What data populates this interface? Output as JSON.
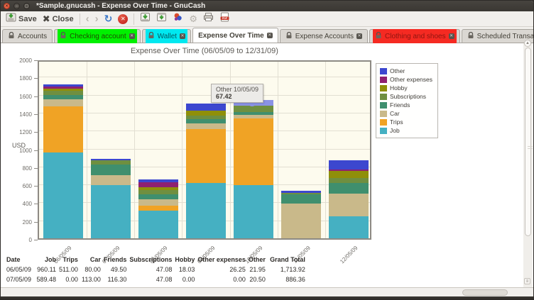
{
  "window": {
    "title": "*Sample.gnucash - Expense Over Time - GnuCash"
  },
  "toolbar": {
    "save_label": "Save",
    "close_label": "Close",
    "icons": [
      "save-icon",
      "close-icon",
      "back-icon",
      "forward-icon",
      "reload-icon",
      "stop-icon",
      "export-icon",
      "export-alt-icon",
      "report-options-icon",
      "gear-icon",
      "print-icon",
      "export-pdf-icon"
    ]
  },
  "tabs": [
    {
      "label": "Accounts",
      "closable": false,
      "active": false,
      "highlight": null
    },
    {
      "label": "Checking account",
      "closable": true,
      "active": false,
      "highlight": "#00f000",
      "text_color": "#1d4d00"
    },
    {
      "label": "Wallet",
      "closable": true,
      "active": false,
      "highlight": "#00e8f0",
      "text_color": "#005a62"
    },
    {
      "label": "Expense Over Time",
      "closable": true,
      "active": true,
      "highlight": null
    },
    {
      "label": "Expense Accounts",
      "closable": true,
      "active": false,
      "highlight": null
    },
    {
      "label": "Clothing and shoes",
      "closable": true,
      "active": false,
      "highlight": "#f52a22",
      "text_color": "#8e1510"
    },
    {
      "label": "Scheduled Transactions",
      "closable": true,
      "active": false,
      "highlight": null
    }
  ],
  "chart_data": {
    "type": "bar",
    "stacked": true,
    "title": "Expense Over Time (06/05/09 to 12/31/09)",
    "ylabel": "USD",
    "xlabel": "",
    "ylim": [
      0,
      2000
    ],
    "ytick_step": 200,
    "grid": true,
    "legend_position": "right",
    "categories": [
      "06/05/09",
      "07/05/09",
      "08/05/09",
      "09/05/09",
      "10/05/09",
      "11/05/09",
      "12/05/09"
    ],
    "series": [
      {
        "name": "Job",
        "color": "#45b0c2",
        "values": [
          960.11,
          589.48,
          310,
          620,
          590,
          0,
          245
        ]
      },
      {
        "name": "Trips",
        "color": "#f0a325",
        "values": [
          511.0,
          0.0,
          50,
          600,
          745,
          0,
          0
        ]
      },
      {
        "name": "Car",
        "color": "#c9b98a",
        "values": [
          80.0,
          113.0,
          75,
          60,
          40,
          390,
          250
        ]
      },
      {
        "name": "Friends",
        "color": "#3f8f6e",
        "values": [
          49.5,
          116.3,
          55,
          45,
          30,
          100,
          120
        ]
      },
      {
        "name": "Subscriptions",
        "color": "#6f8f40",
        "values": [
          47.08,
          47.08,
          47,
          45,
          70,
          15,
          60
        ]
      },
      {
        "name": "Hobby",
        "color": "#8f8f0a",
        "values": [
          18.03,
          0.0,
          35,
          55,
          0,
          0,
          80
        ]
      },
      {
        "name": "Other expenses",
        "color": "#8f2070",
        "values": [
          26.25,
          0.0,
          55,
          0,
          0,
          0,
          12
        ]
      },
      {
        "name": "Other",
        "color": "#3c47cf",
        "values": [
          21.95,
          20.5,
          30,
          80,
          67.42,
          25,
          105
        ]
      }
    ],
    "highlight": {
      "category_index": 4,
      "series": "Other",
      "color": "#8b93e6"
    },
    "tooltip": {
      "line1": "Other 10/05/09",
      "line2": "67.42"
    }
  },
  "table": {
    "headers": [
      "Date",
      "Job",
      "Trips",
      "Car",
      "Friends",
      "Subscriptions",
      "Hobby",
      "Other expenses",
      "Other",
      "Grand Total"
    ],
    "rows": [
      [
        "06/05/09",
        "960.11",
        "511.00",
        "80.00",
        "49.50",
        "47.08",
        "18.03",
        "26.25",
        "21.95",
        "1,713.92"
      ],
      [
        "07/05/09",
        "589.48",
        "0.00",
        "113.00",
        "116.30",
        "47.08",
        "0.00",
        "0.00",
        "20.50",
        "886.36"
      ]
    ]
  }
}
